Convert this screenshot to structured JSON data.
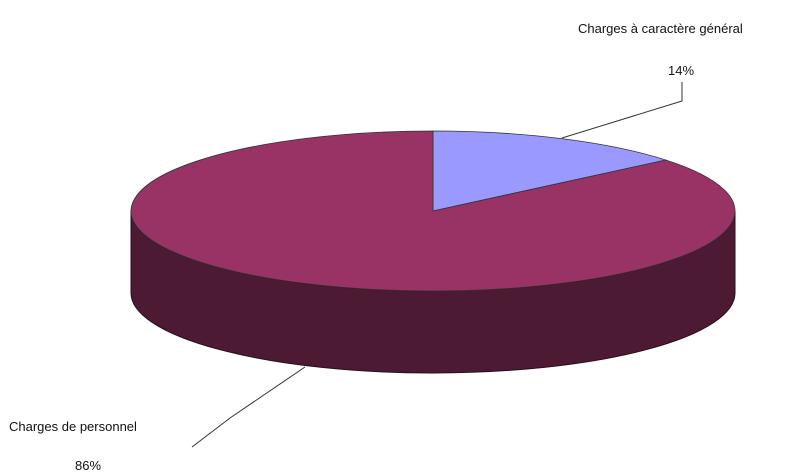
{
  "chart_data": {
    "type": "pie",
    "title": "",
    "slices": [
      {
        "label": "Charges à caractère général",
        "value": 14,
        "value_label": "14%",
        "color": "#9999ff"
      },
      {
        "label": "Charges de personnel",
        "value": 86,
        "value_label": "86%",
        "color": "#993366"
      }
    ],
    "side_color": "#4d1a33",
    "legend": "none"
  }
}
